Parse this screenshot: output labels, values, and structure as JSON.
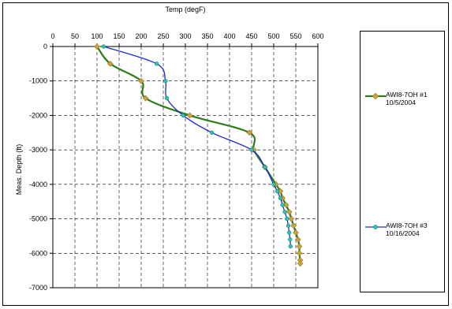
{
  "chart_data": {
    "type": "line",
    "xlabel": "Temp (degF)",
    "ylabel": "Meas. Depth (ft)",
    "xlim": [
      0,
      600
    ],
    "ylim": [
      -7000,
      0
    ],
    "x_ticks": [
      0,
      50,
      100,
      150,
      200,
      250,
      300,
      350,
      400,
      450,
      500,
      550,
      600
    ],
    "y_ticks": [
      0,
      -1000,
      -2000,
      -3000,
      -4000,
      -5000,
      -6000,
      -7000
    ],
    "x_axis_position": "top",
    "grid": true,
    "grid_style": "dashed",
    "legend_position": "right",
    "series": [
      {
        "name": "AWI8-7OH #1",
        "date": "10/5/2004",
        "color": "#2e7d1a",
        "marker_color": "#c8a23a",
        "marker": "diamond",
        "points": [
          [
            100,
            0
          ],
          [
            130,
            -500
          ],
          [
            200,
            -1000
          ],
          [
            210,
            -1500
          ],
          [
            310,
            -2000
          ],
          [
            445,
            -2500
          ],
          [
            455,
            -3000
          ],
          [
            480,
            -3500
          ],
          [
            505,
            -4000
          ],
          [
            515,
            -4200
          ],
          [
            520,
            -4400
          ],
          [
            528,
            -4600
          ],
          [
            535,
            -4800
          ],
          [
            540,
            -5000
          ],
          [
            545,
            -5200
          ],
          [
            550,
            -5400
          ],
          [
            555,
            -5600
          ],
          [
            558,
            -5800
          ],
          [
            558,
            -6000
          ],
          [
            560,
            -6200
          ],
          [
            560,
            -6300
          ]
        ]
      },
      {
        "name": "AWI8-7OH #3",
        "date": "10/16/2004",
        "color": "#1a2bd8",
        "marker_color": "#2ec4b0",
        "marker": "circle",
        "points": [
          [
            115,
            0
          ],
          [
            235,
            -500
          ],
          [
            255,
            -1000
          ],
          [
            258,
            -1500
          ],
          [
            295,
            -2000
          ],
          [
            360,
            -2500
          ],
          [
            450,
            -3000
          ],
          [
            480,
            -3500
          ],
          [
            500,
            -4000
          ],
          [
            508,
            -4200
          ],
          [
            515,
            -4400
          ],
          [
            520,
            -4600
          ],
          [
            525,
            -4800
          ],
          [
            530,
            -5000
          ],
          [
            533,
            -5200
          ],
          [
            535,
            -5400
          ],
          [
            537,
            -5600
          ],
          [
            538,
            -5800
          ]
        ]
      }
    ]
  }
}
